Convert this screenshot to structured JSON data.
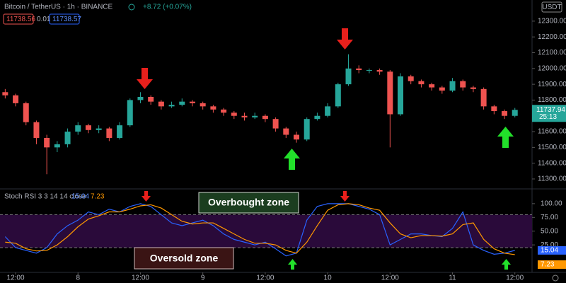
{
  "header": {
    "symbol": "Bitcoin / TetherUS · 1h · BINANCE",
    "change": "+8.72 (+0.07%)",
    "bid": 11738.56,
    "spread": 0.01,
    "ask": 11738.57,
    "currency": "USDT",
    "countdown": "25:13"
  },
  "chart_data": [
    {
      "type": "candlestick",
      "up_color": "#26a69a",
      "down_color": "#ef5350",
      "x": [
        -2,
        0,
        2,
        4,
        6,
        8,
        10,
        12,
        14,
        16,
        18,
        20,
        22,
        24,
        26,
        28,
        30,
        32,
        34,
        36,
        38,
        40,
        42,
        44,
        46,
        48,
        50,
        52,
        54,
        56,
        58,
        60,
        62,
        64,
        66,
        68,
        70,
        72,
        74,
        76,
        78,
        80,
        82,
        84,
        86,
        88,
        90,
        92,
        94,
        96
      ],
      "open": [
        11850,
        11830,
        11780,
        11660,
        11560,
        11500,
        11520,
        11600,
        11640,
        11610,
        11620,
        11560,
        11640,
        11800,
        11820,
        11790,
        11760,
        11770,
        11790,
        11780,
        11760,
        11740,
        11720,
        11700,
        11690,
        11700,
        11680,
        11620,
        11580,
        11550,
        11680,
        11700,
        11760,
        11900,
        12000,
        11990,
        11990,
        11980,
        11710,
        11950,
        11920,
        11900,
        11880,
        11860,
        11920,
        11880,
        11870,
        11760,
        11730,
        11700
      ],
      "high": [
        11870,
        11840,
        11790,
        11670,
        11580,
        11540,
        11620,
        11660,
        11650,
        11640,
        11630,
        11660,
        11810,
        11850,
        11830,
        11800,
        11790,
        11810,
        11800,
        11790,
        11770,
        11750,
        11730,
        11720,
        11720,
        11710,
        11690,
        11630,
        11600,
        11690,
        11720,
        11780,
        11910,
        12090,
        12020,
        12000,
        12000,
        11990,
        11970,
        11960,
        11930,
        11910,
        11890,
        11940,
        11930,
        11890,
        11880,
        11770,
        11740,
        11750
      ],
      "low": [
        11810,
        11760,
        11640,
        11520,
        11330,
        11470,
        11500,
        11580,
        11590,
        11590,
        11540,
        11550,
        11630,
        11780,
        11770,
        11740,
        11750,
        11760,
        11760,
        11740,
        11720,
        11700,
        11680,
        11670,
        11680,
        11660,
        11600,
        11560,
        11530,
        11540,
        11670,
        11690,
        11750,
        11890,
        11970,
        11970,
        11960,
        11500,
        11700,
        11900,
        11880,
        11860,
        11840,
        11850,
        11860,
        11850,
        11740,
        11710,
        11680,
        11690
      ],
      "close": [
        11830,
        11780,
        11660,
        11560,
        11500,
        11520,
        11600,
        11640,
        11610,
        11620,
        11560,
        11640,
        11800,
        11820,
        11790,
        11760,
        11770,
        11790,
        11780,
        11760,
        11740,
        11720,
        11700,
        11690,
        11700,
        11680,
        11620,
        11580,
        11550,
        11680,
        11700,
        11760,
        11900,
        12000,
        11990,
        11990,
        11980,
        11710,
        11950,
        11920,
        11900,
        11880,
        11860,
        11920,
        11880,
        11870,
        11760,
        11730,
        11700,
        11737.94
      ],
      "xlim": [
        -3,
        99.3
      ],
      "ylim": [
        11246,
        12434
      ],
      "yticks": [
        {
          "value": 11300,
          "label": "11300.00"
        },
        {
          "value": 11400,
          "label": "11400.00"
        },
        {
          "value": 11500,
          "label": "11500.00"
        },
        {
          "value": 11600,
          "label": "11600.00"
        },
        {
          "value": 11700,
          "label": "11700.00"
        },
        {
          "value": 11800,
          "label": "11800.00"
        },
        {
          "value": 11900,
          "label": "11900.00"
        },
        {
          "value": 12000,
          "label": "12000.00"
        },
        {
          "value": 12100,
          "label": "12100.00"
        },
        {
          "value": 12200,
          "label": "12200.00"
        },
        {
          "value": 12300,
          "label": "12300.00"
        }
      ]
    },
    {
      "type": "line",
      "title": "Stoch RSI 3 3 14 14 close",
      "x": [
        -2,
        0,
        2,
        4,
        6,
        8,
        10,
        12,
        14,
        16,
        18,
        20,
        22,
        24,
        26,
        28,
        30,
        32,
        34,
        36,
        38,
        40,
        42,
        44,
        46,
        48,
        50,
        52,
        54,
        56,
        58,
        60,
        62,
        64,
        66,
        68,
        70,
        72,
        74,
        76,
        78,
        80,
        82,
        84,
        86,
        88,
        90,
        92,
        94,
        96
      ],
      "series": [
        {
          "color": "#2962ff",
          "values": [
            40,
            20,
            15,
            10,
            20,
            45,
            60,
            70,
            85,
            80,
            90,
            85,
            95,
            100,
            95,
            80,
            65,
            60,
            65,
            70,
            60,
            45,
            35,
            30,
            25,
            30,
            18,
            5,
            10,
            70,
            95,
            100,
            100,
            100,
            95,
            90,
            80,
            25,
            35,
            45,
            45,
            42,
            40,
            55,
            85,
            25,
            15,
            8,
            10,
            15.04
          ]
        },
        {
          "color": "#ff9800",
          "values": [
            30,
            28,
            18,
            14,
            15,
            25,
            40,
            58,
            72,
            78,
            85,
            85,
            90,
            96,
            98,
            92,
            80,
            68,
            63,
            65,
            65,
            55,
            45,
            35,
            28,
            28,
            25,
            15,
            10,
            30,
            60,
            88,
            98,
            100,
            98,
            92,
            88,
            65,
            45,
            38,
            42,
            42,
            41,
            45,
            62,
            65,
            35,
            18,
            10,
            7.23
          ]
        }
      ],
      "band": [
        20,
        80
      ],
      "band_color": "#2a0a3a",
      "annotations": [
        "Overbought zone",
        "Oversold zone"
      ],
      "xlim": [
        -3,
        99.3
      ],
      "ylim": [
        -25,
        123
      ],
      "yticks": [
        {
          "value": 25,
          "label": "25.00"
        },
        {
          "value": 50,
          "label": "50.00"
        },
        {
          "value": 75,
          "label": "75.00"
        },
        {
          "value": 100,
          "label": "100.00"
        }
      ],
      "xticks": [
        {
          "value": 0,
          "label": "12:00"
        },
        {
          "value": 12,
          "label": "8"
        },
        {
          "value": 24,
          "label": "12:00"
        },
        {
          "value": 36,
          "label": "9"
        },
        {
          "value": 48,
          "label": "12:00"
        },
        {
          "value": 60,
          "label": "10"
        },
        {
          "value": 72,
          "label": "12:00"
        },
        {
          "value": 84,
          "label": "11"
        },
        {
          "value": 96,
          "label": "12:00"
        }
      ]
    }
  ]
}
